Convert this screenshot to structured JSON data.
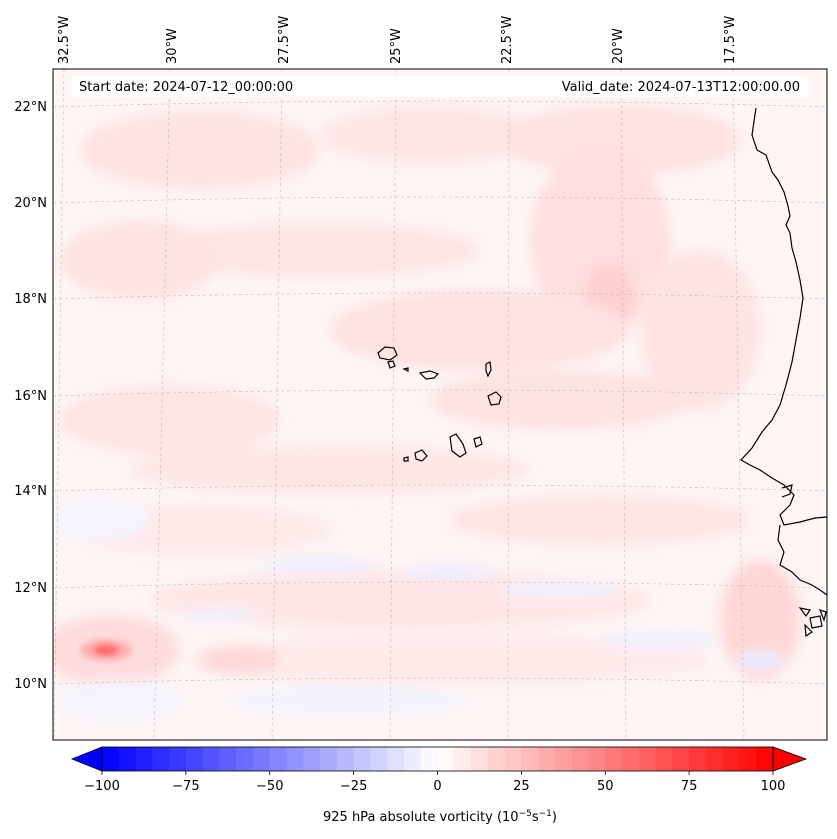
{
  "header": {
    "start_date": "Start date: 2024-07-12_00:00:00",
    "valid_date": "Valid_date: 2024-07-13T12:00:00.00"
  },
  "longitude_labels": [
    "32.5°W",
    "30°W",
    "27.5°W",
    "25°W",
    "22.5°W",
    "20°W",
    "17.5°W"
  ],
  "latitude_labels": [
    "22°N",
    "20°N",
    "18°N",
    "16°N",
    "14°N",
    "12°N",
    "10°N"
  ],
  "colorbar": {
    "label": "925 hPa absolute vorticity (10",
    "label_exp1": "−5",
    "label_mid": "s",
    "label_exp2": "−1",
    "label_end": ")",
    "ticks": [
      "−100",
      "−75",
      "−50",
      "−25",
      "0",
      "25",
      "50",
      "75",
      "100"
    ],
    "min": -100,
    "max": 100,
    "low_color": "#0000ff",
    "mid_color": "#ffffff",
    "high_color": "#ff0000"
  },
  "map_colors": {
    "background": "#fff4f4",
    "coastline": "#000000",
    "gridline": "#bbbbbb"
  }
}
